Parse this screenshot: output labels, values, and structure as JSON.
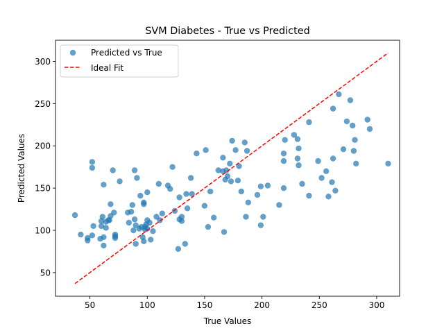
{
  "chart_data": {
    "type": "scatter",
    "title": "SVM Diabetes - True vs Predicted",
    "xlabel": "True Values",
    "ylabel": "Predicted Values",
    "xlim": [
      20,
      320
    ],
    "ylim": [
      22,
      325
    ],
    "xticks": [
      50,
      100,
      150,
      200,
      250,
      300
    ],
    "yticks": [
      50,
      100,
      150,
      200,
      250,
      300
    ],
    "grid": false,
    "legend": {
      "position": "top-left",
      "entries": [
        "Predicted vs True",
        "Ideal Fit"
      ]
    },
    "colors": {
      "points": "#1f77b4",
      "ideal_line": "#ff0000"
    },
    "ideal_fit": {
      "x": [
        37,
        310
      ],
      "y": [
        37,
        310
      ]
    },
    "series": [
      {
        "name": "Predicted vs True",
        "points": [
          [
            37,
            118
          ],
          [
            42,
            95
          ],
          [
            48,
            91
          ],
          [
            48,
            88
          ],
          [
            52,
            94
          ],
          [
            52,
            174
          ],
          [
            52,
            181
          ],
          [
            53,
            105
          ],
          [
            59,
            90
          ],
          [
            60,
            111
          ],
          [
            60,
            105
          ],
          [
            61,
            116
          ],
          [
            62,
            82
          ],
          [
            62,
            154
          ],
          [
            62,
            92
          ],
          [
            64,
            110
          ],
          [
            64,
            103
          ],
          [
            66,
            112
          ],
          [
            67,
            112
          ],
          [
            68,
            117
          ],
          [
            68,
            131
          ],
          [
            70,
            171
          ],
          [
            71,
            121
          ],
          [
            72,
            95
          ],
          [
            72,
            91
          ],
          [
            72,
            93
          ],
          [
            76,
            158
          ],
          [
            83,
            121
          ],
          [
            84,
            109
          ],
          [
            86,
            122
          ],
          [
            87,
            130
          ],
          [
            88,
            100
          ],
          [
            89,
            171
          ],
          [
            89,
            113
          ],
          [
            90,
            84
          ],
          [
            90,
            106
          ],
          [
            91,
            162
          ],
          [
            93,
            102
          ],
          [
            94,
            141
          ],
          [
            95,
            104
          ],
          [
            96,
            92
          ],
          [
            97,
            131
          ],
          [
            97,
            87
          ],
          [
            97,
            133
          ],
          [
            98,
            101
          ],
          [
            98,
            104
          ],
          [
            99,
            107
          ],
          [
            100,
            145
          ],
          [
            100,
            102
          ],
          [
            100,
            112
          ],
          [
            102,
            109
          ],
          [
            103,
            89
          ],
          [
            105,
            99
          ],
          [
            108,
            116
          ],
          [
            110,
            155
          ],
          [
            111,
            112
          ],
          [
            113,
            120
          ],
          [
            118,
            153
          ],
          [
            120,
            149
          ],
          [
            122,
            175
          ],
          [
            124,
            123
          ],
          [
            127,
            78
          ],
          [
            128,
            113
          ],
          [
            128,
            139
          ],
          [
            130,
            116
          ],
          [
            130,
            111
          ],
          [
            133,
            84
          ],
          [
            134,
            143
          ],
          [
            135,
            126
          ],
          [
            138,
            162
          ],
          [
            139,
            143
          ],
          [
            143,
            191
          ],
          [
            150,
            129
          ],
          [
            151,
            195
          ],
          [
            153,
            104
          ],
          [
            155,
            146
          ],
          [
            158,
            115
          ],
          [
            162,
            171
          ],
          [
            166,
            170
          ],
          [
            166,
            186
          ],
          [
            167,
            98
          ],
          [
            168,
            160
          ],
          [
            169,
            171
          ],
          [
            170,
            164
          ],
          [
            172,
            179
          ],
          [
            173,
            158
          ],
          [
            174,
            206
          ],
          [
            177,
            195
          ],
          [
            179,
            159
          ],
          [
            180,
            176
          ],
          [
            182,
            146
          ],
          [
            185,
            204
          ],
          [
            186,
            116
          ],
          [
            187,
            194
          ],
          [
            188,
            133
          ],
          [
            196,
            142
          ],
          [
            199,
            106
          ],
          [
            199,
            152
          ],
          [
            201,
            116
          ],
          [
            205,
            153
          ],
          [
            215,
            130
          ],
          [
            219,
            150
          ],
          [
            219,
            182
          ],
          [
            219,
            191
          ],
          [
            220,
            207
          ],
          [
            228,
            213
          ],
          [
            231,
            208
          ],
          [
            231,
            185
          ],
          [
            232,
            177
          ],
          [
            232,
            197
          ],
          [
            235,
            155
          ],
          [
            241,
            141
          ],
          [
            241,
            228
          ],
          [
            249,
            182
          ],
          [
            252,
            162
          ],
          [
            256,
            170
          ],
          [
            258,
            140
          ],
          [
            261,
            157
          ],
          [
            262,
            185
          ],
          [
            262,
            244
          ],
          [
            264,
            147
          ],
          [
            267,
            261
          ],
          [
            271,
            196
          ],
          [
            274,
            229
          ],
          [
            277,
            254
          ],
          [
            279,
            224
          ],
          [
            280,
            194
          ],
          [
            281,
            207
          ],
          [
            282,
            179
          ],
          [
            292,
            231
          ],
          [
            294,
            220
          ],
          [
            310,
            179
          ]
        ]
      }
    ]
  }
}
